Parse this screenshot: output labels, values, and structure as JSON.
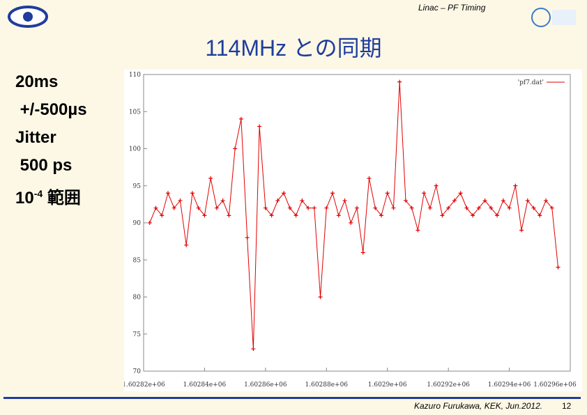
{
  "header": {
    "text": "Linac – PF Timing",
    "title": "114MHz との同期"
  },
  "left_text": [
    "20ms",
    " +/-500µs",
    "Jitter",
    " 500 ps",
    "10",
    "-4",
    " 範囲"
  ],
  "footer": {
    "author": "Kazuro Furukawa, KEK, Jun.2012.",
    "page": "12"
  },
  "chart_data": {
    "type": "line",
    "legend": "'pf7.dat'",
    "color": "#e00000",
    "xlim": [
      1602820,
      1602960
    ],
    "ylim": [
      70,
      110
    ],
    "yticks": [
      70,
      75,
      80,
      85,
      90,
      95,
      100,
      105,
      110
    ],
    "xticks": [
      {
        "value": 1602820,
        "label": "1.60282e+06"
      },
      {
        "value": 1602840,
        "label": "1.60284e+06"
      },
      {
        "value": 1602860,
        "label": "1.60286e+06"
      },
      {
        "value": 1602880,
        "label": "1.60288e+06"
      },
      {
        "value": 1602900,
        "label": "1.6029e+06"
      },
      {
        "value": 1602920,
        "label": "1.60292e+06"
      },
      {
        "value": 1602940,
        "label": "1.60294e+06"
      },
      {
        "value": 1602960,
        "label": "1.60296e+06"
      }
    ],
    "x": [
      1602822,
      1602824,
      1602826,
      1602828,
      1602830,
      1602832,
      1602834,
      1602836,
      1602838,
      1602840,
      1602842,
      1602844,
      1602846,
      1602848,
      1602850,
      1602852,
      1602854,
      1602856,
      1602858,
      1602860,
      1602862,
      1602864,
      1602866,
      1602868,
      1602870,
      1602872,
      1602874,
      1602876,
      1602878,
      1602880,
      1602882,
      1602884,
      1602886,
      1602888,
      1602890,
      1602892,
      1602894,
      1602896,
      1602898,
      1602900,
      1602902,
      1602904,
      1602906,
      1602908,
      1602910,
      1602912,
      1602914,
      1602916,
      1602918,
      1602920,
      1602922,
      1602924,
      1602926,
      1602928,
      1602930,
      1602932,
      1602934,
      1602936,
      1602938,
      1602940,
      1602942,
      1602944,
      1602946,
      1602948,
      1602950,
      1602952,
      1602954,
      1602956
    ],
    "values": [
      90,
      92,
      91,
      94,
      92,
      93,
      87,
      94,
      92,
      91,
      96,
      92,
      93,
      91,
      100,
      104,
      88,
      73,
      103,
      92,
      91,
      93,
      94,
      92,
      91,
      93,
      92,
      92,
      80,
      92,
      94,
      91,
      93,
      90,
      92,
      86,
      96,
      92,
      91,
      94,
      92,
      109,
      93,
      92,
      89,
      94,
      92,
      95,
      91,
      92,
      93,
      94,
      92,
      91,
      92,
      93,
      92,
      91,
      93,
      92,
      95,
      89,
      93,
      92,
      91,
      93,
      92,
      84
    ]
  }
}
